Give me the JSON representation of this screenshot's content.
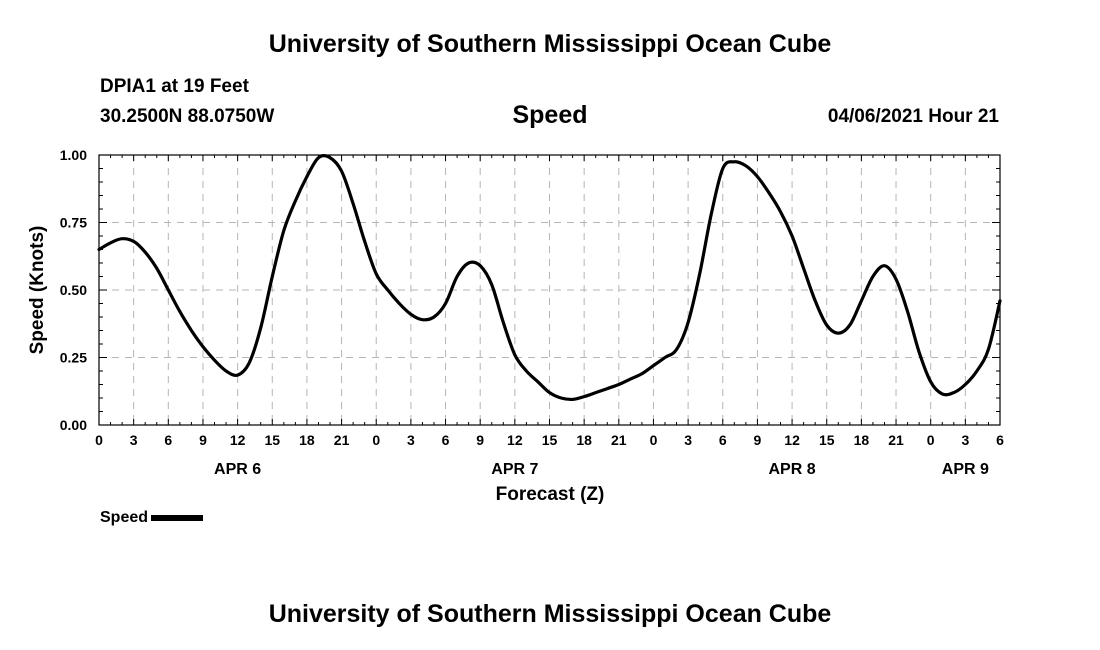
{
  "header": {
    "title": "University of Southern Mississippi Ocean Cube",
    "station": "DPIA1 at 19 Feet",
    "coordinates": "30.2500N  88.0750W",
    "parameter": "Speed",
    "datetime": "04/06/2021 Hour 21"
  },
  "footer": {
    "title": "University of Southern Mississippi Ocean Cube"
  },
  "legend": {
    "label": "Speed"
  },
  "chart_data": {
    "type": "line",
    "title": "Speed",
    "xlabel": "Forecast (Z)",
    "ylabel": "Speed (Knots)",
    "ylim": [
      0,
      1
    ],
    "yticks": [
      "0.00",
      "0.25",
      "0.50",
      "0.75",
      "1.00"
    ],
    "xlim_hours": [
      0,
      78
    ],
    "xtick_labels": [
      "0",
      "3",
      "6",
      "9",
      "12",
      "15",
      "18",
      "21",
      "0",
      "3",
      "6",
      "9",
      "12",
      "15",
      "18",
      "21",
      "0",
      "3",
      "6",
      "9",
      "12",
      "15",
      "18",
      "21",
      "0",
      "3",
      "6"
    ],
    "date_labels": [
      {
        "label": "APR 6",
        "hour": 12
      },
      {
        "label": "APR 7",
        "hour": 36
      },
      {
        "label": "APR 8",
        "hour": 60
      },
      {
        "label": "APR 9",
        "hour": 75
      }
    ],
    "grid": true,
    "series": [
      {
        "name": "Speed",
        "x": [
          0,
          1,
          2,
          3,
          4,
          5,
          6,
          7,
          8,
          9,
          10,
          11,
          12,
          13,
          14,
          15,
          16,
          17,
          18,
          19,
          20,
          21,
          22,
          23,
          24,
          25,
          26,
          27,
          28,
          29,
          30,
          31,
          32,
          33,
          34,
          35,
          36,
          37,
          38,
          39,
          40,
          41,
          42,
          43,
          44,
          45,
          46,
          47,
          48,
          49,
          50,
          51,
          52,
          53,
          54,
          55,
          56,
          57,
          58,
          59,
          60,
          61,
          62,
          63,
          64,
          65,
          66,
          67,
          68,
          69,
          70,
          71,
          72,
          73,
          74,
          75,
          76,
          77,
          78
        ],
        "values": [
          0.65,
          0.675,
          0.69,
          0.68,
          0.64,
          0.58,
          0.5,
          0.42,
          0.35,
          0.29,
          0.24,
          0.2,
          0.185,
          0.23,
          0.36,
          0.55,
          0.72,
          0.83,
          0.92,
          0.99,
          0.99,
          0.94,
          0.82,
          0.68,
          0.56,
          0.5,
          0.45,
          0.41,
          0.39,
          0.4,
          0.45,
          0.55,
          0.6,
          0.59,
          0.52,
          0.38,
          0.26,
          0.2,
          0.16,
          0.12,
          0.1,
          0.095,
          0.105,
          0.12,
          0.135,
          0.15,
          0.17,
          0.19,
          0.22,
          0.25,
          0.28,
          0.38,
          0.56,
          0.78,
          0.95,
          0.975,
          0.96,
          0.92,
          0.86,
          0.79,
          0.7,
          0.58,
          0.46,
          0.37,
          0.34,
          0.37,
          0.46,
          0.55,
          0.59,
          0.54,
          0.42,
          0.27,
          0.16,
          0.115,
          0.12,
          0.15,
          0.2,
          0.28,
          0.46
        ]
      }
    ]
  }
}
